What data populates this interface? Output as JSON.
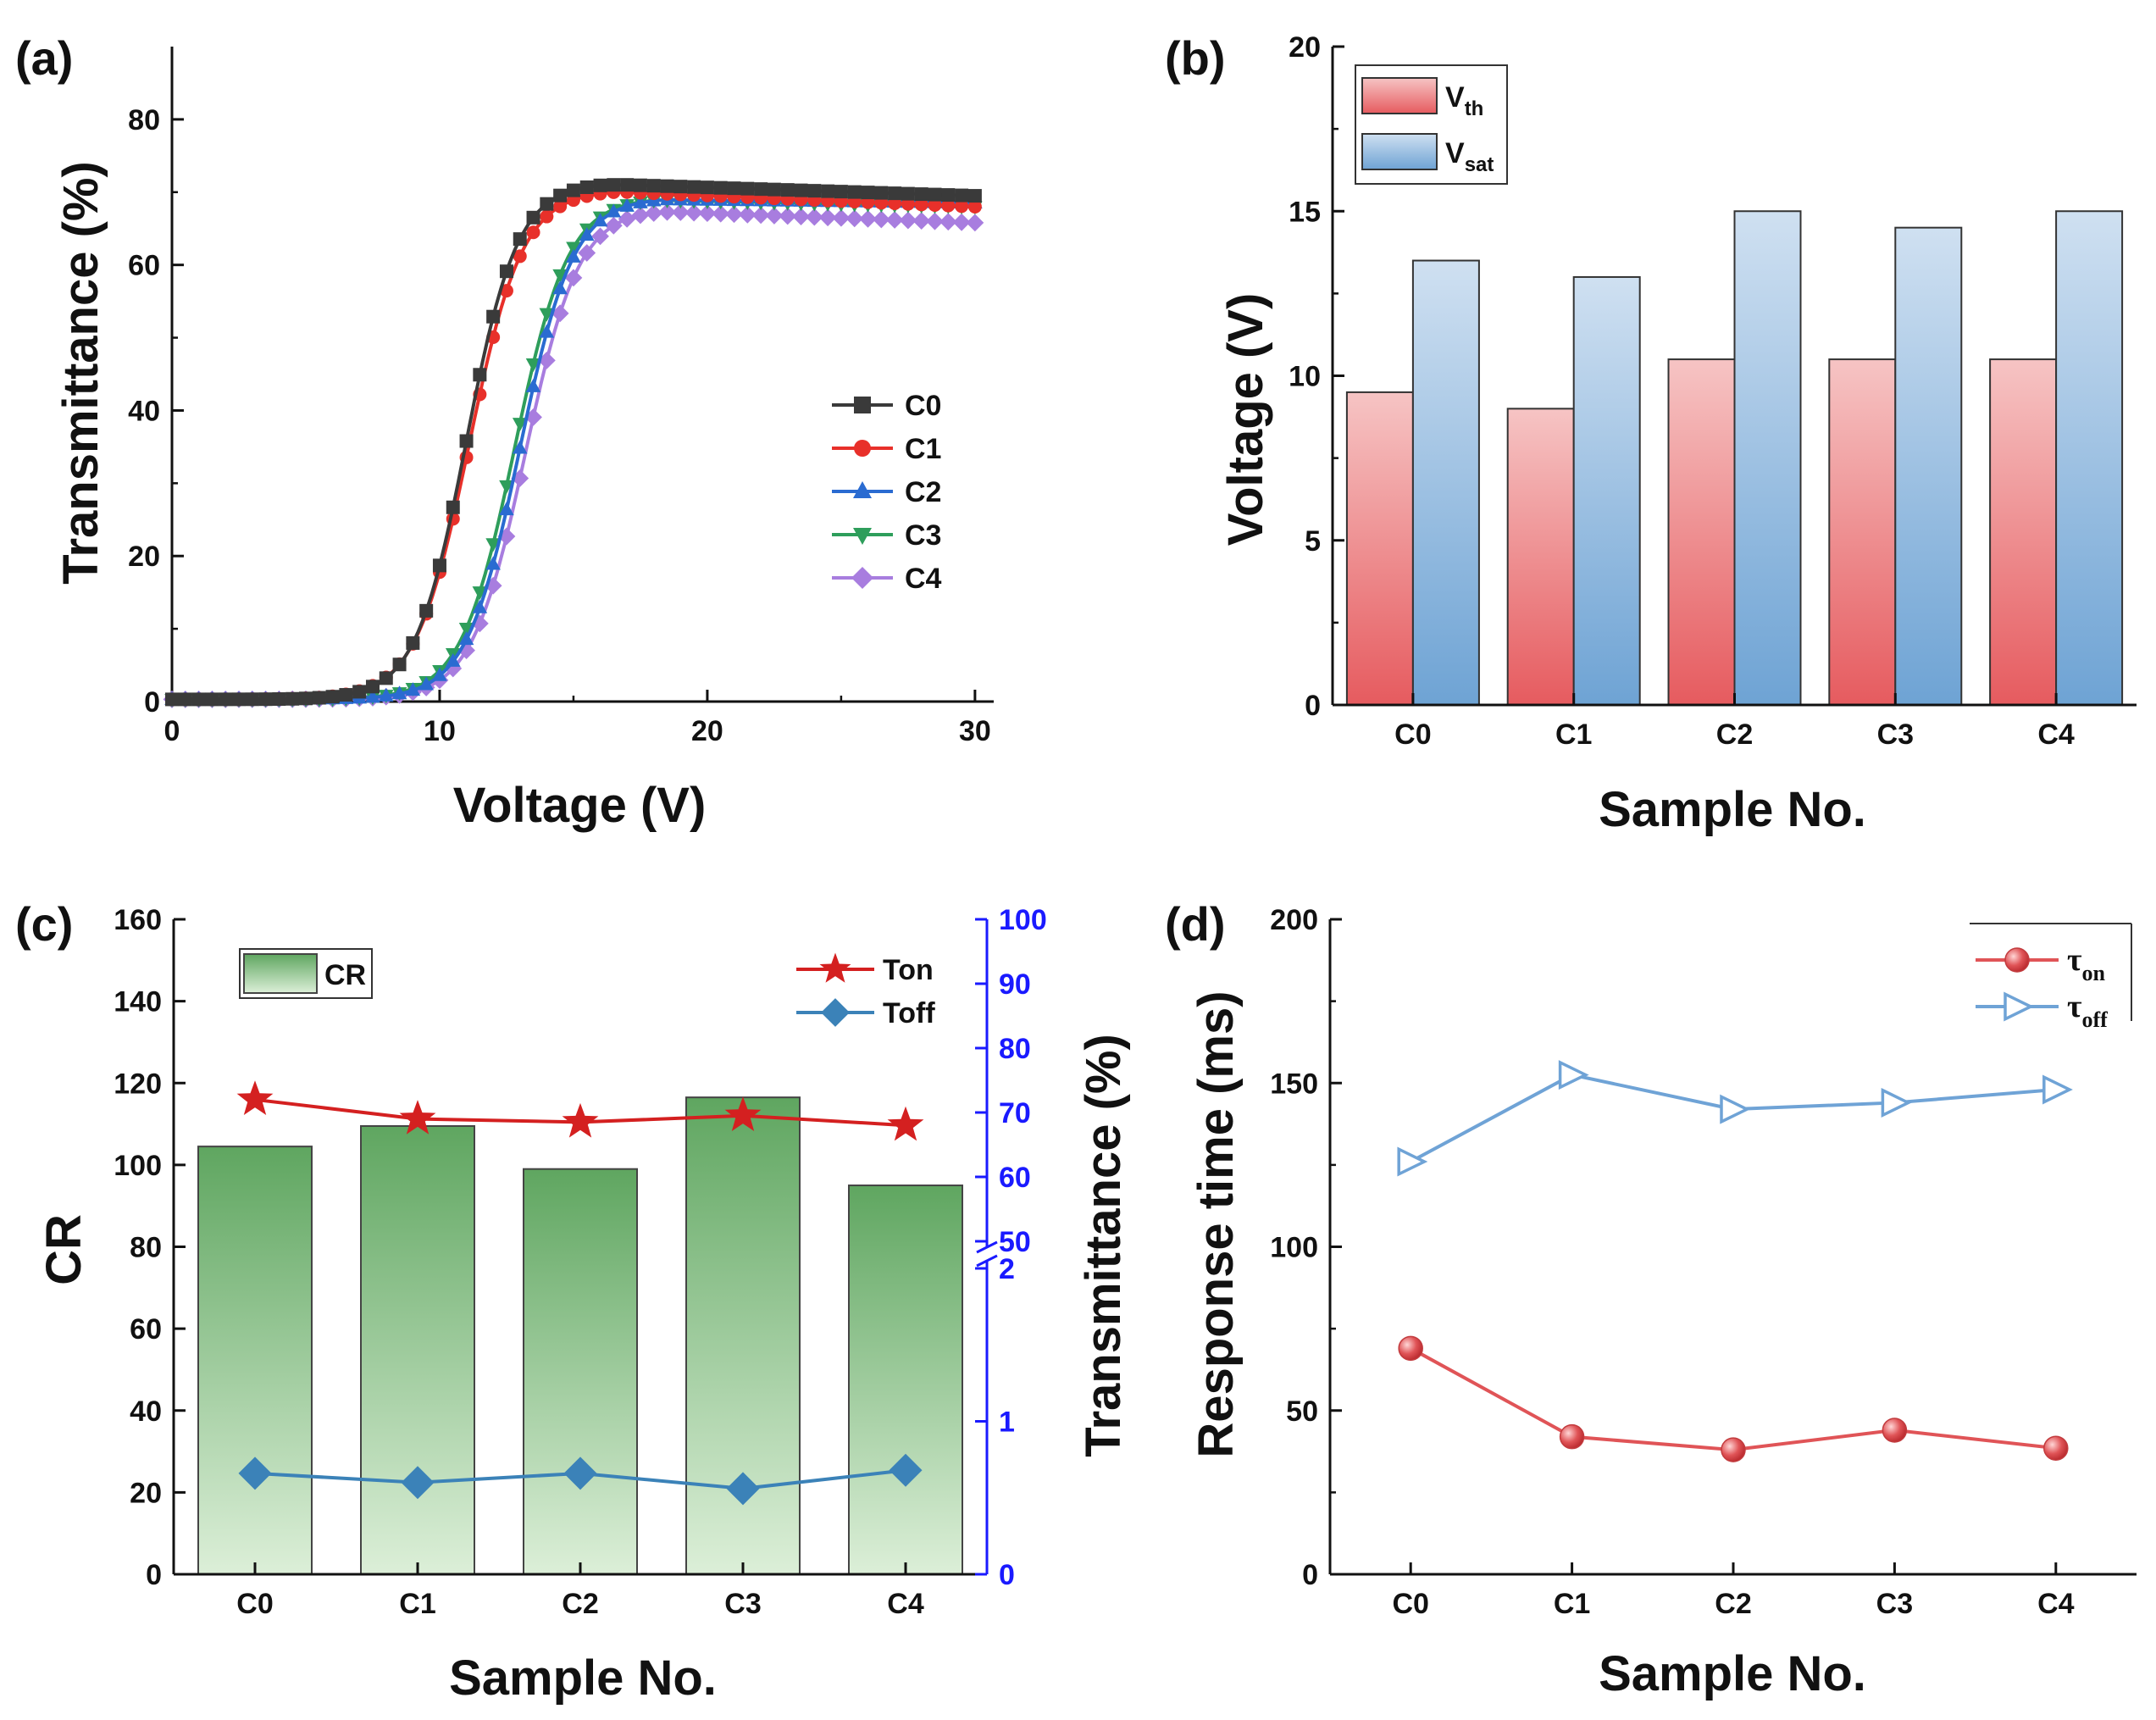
{
  "chart_data": [
    {
      "panel": "(a)",
      "type": "line",
      "xlabel": "Voltage (V)",
      "ylabel": "Transmittance (%)",
      "xlim": [
        0,
        30
      ],
      "ylim": [
        0,
        90
      ],
      "xticks": [
        "0",
        "10",
        "20",
        "30"
      ],
      "yticks": [
        "0",
        "20",
        "40",
        "60",
        "80"
      ],
      "legend_position": "right-middle",
      "series": [
        {
          "name": "C0",
          "color": "#3a3a3a",
          "marker": "square",
          "midpoint": 11.0,
          "steepness": 1.05,
          "plateau": 71.0,
          "end_value": 69.5,
          "points": [
            [
              0,
              0.3
            ],
            [
              5,
              0.6
            ],
            [
              8,
              2
            ],
            [
              9,
              7
            ],
            [
              10,
              18
            ],
            [
              11,
              35
            ],
            [
              12,
              55
            ],
            [
              13,
              66
            ],
            [
              14,
              70
            ],
            [
              16,
              71
            ],
            [
              20,
              71
            ],
            [
              25,
              70.3
            ],
            [
              30,
              69.5
            ]
          ]
        },
        {
          "name": "C1",
          "color": "#e8302a",
          "marker": "circle",
          "midpoint": 11.1,
          "steepness": 1.0,
          "plateau": 70.0,
          "end_value": 68.0,
          "points": [
            [
              0,
              0.3
            ],
            [
              5,
              0.6
            ],
            [
              8,
              2
            ],
            [
              9,
              6
            ],
            [
              10,
              15
            ],
            [
              11,
              33
            ],
            [
              12,
              52
            ],
            [
              13,
              63
            ],
            [
              14,
              67
            ],
            [
              16,
              69
            ],
            [
              20,
              69.5
            ],
            [
              25,
              68.7
            ],
            [
              30,
              68.0
            ]
          ]
        },
        {
          "name": "C2",
          "color": "#2a6bd1",
          "marker": "triangle-up",
          "midpoint": 13.0,
          "steepness": 1.0,
          "plateau": 69.0,
          "end_value": 68.5,
          "points": [
            [
              0,
              0.3
            ],
            [
              5,
              0.5
            ],
            [
              9,
              1
            ],
            [
              10,
              3
            ],
            [
              11,
              8
            ],
            [
              12,
              20
            ],
            [
              13,
              35
            ],
            [
              14,
              52
            ],
            [
              15,
              62
            ],
            [
              16,
              67
            ],
            [
              20,
              69
            ],
            [
              25,
              68.8
            ],
            [
              30,
              68.5
            ]
          ]
        },
        {
          "name": "C3",
          "color": "#2e9e5b",
          "marker": "triangle-down",
          "midpoint": 12.8,
          "steepness": 1.0,
          "plateau": 69.0,
          "end_value": 68.0,
          "points": [
            [
              0,
              0.3
            ],
            [
              5,
              0.5
            ],
            [
              9,
              1
            ],
            [
              10,
              4
            ],
            [
              11,
              9
            ],
            [
              12,
              22
            ],
            [
              13,
              38
            ],
            [
              14,
              55
            ],
            [
              15,
              63
            ],
            [
              16,
              67
            ],
            [
              20,
              68.7
            ],
            [
              25,
              68.4
            ],
            [
              30,
              68.0
            ]
          ]
        },
        {
          "name": "C4",
          "color": "#a87ddf",
          "marker": "diamond",
          "midpoint": 13.2,
          "steepness": 1.0,
          "plateau": 67.5,
          "end_value": 65.8,
          "points": [
            [
              0,
              0.3
            ],
            [
              5,
              0.5
            ],
            [
              9,
              1
            ],
            [
              10,
              3
            ],
            [
              11,
              7
            ],
            [
              12,
              18
            ],
            [
              13,
              33
            ],
            [
              14,
              50
            ],
            [
              15,
              60
            ],
            [
              16,
              65
            ],
            [
              20,
              67.5
            ],
            [
              25,
              66.8
            ],
            [
              30,
              65.8
            ]
          ]
        }
      ]
    },
    {
      "panel": "(b)",
      "type": "bar",
      "xlabel": "Sample No.",
      "ylabel": "Voltage (V)",
      "categories": [
        "C0",
        "C1",
        "C2",
        "C3",
        "C4"
      ],
      "ylim": [
        0,
        20
      ],
      "yticks": [
        "0",
        "5",
        "10",
        "15",
        "20"
      ],
      "legend_position": "top-left",
      "series": [
        {
          "name": "V",
          "sub": "th",
          "color_top": "#f6c4c4",
          "color_bottom": "#e65b5f",
          "values": [
            9.5,
            9.0,
            10.5,
            10.5,
            10.5
          ]
        },
        {
          "name": "V",
          "sub": "sat",
          "color_top": "#cfe0f1",
          "color_bottom": "#6ea3d4",
          "values": [
            13.5,
            13.0,
            15.0,
            14.5,
            15.0
          ]
        }
      ]
    },
    {
      "panel": "(c)",
      "type": "bar",
      "xlabel": "Sample No.",
      "ylabel": "CR",
      "y2label": "Transmittance (%)",
      "categories": [
        "C0",
        "C1",
        "C2",
        "C3",
        "C4"
      ],
      "ylim": [
        0,
        160
      ],
      "yticks": [
        "0",
        "20",
        "40",
        "60",
        "80",
        "100",
        "120",
        "140",
        "160"
      ],
      "y2_lower_ticks": [
        "0",
        "1",
        "2"
      ],
      "y2_upper_ticks": [
        "50",
        "60",
        "70",
        "80",
        "90",
        "100"
      ],
      "y2_break": "broken axis between 2 and 50",
      "bars": {
        "name": "CR",
        "color_top": "#64a865",
        "color_bottom": "#d9eed5",
        "values": [
          104.5,
          109.5,
          99.0,
          116.5,
          95.0
        ]
      },
      "series": [
        {
          "name": "Ton",
          "color": "#d42020",
          "marker": "star",
          "values": [
            72.0,
            69.0,
            68.5,
            69.5,
            68.0
          ]
        },
        {
          "name": "Toff",
          "color": "#3b82b8",
          "marker": "diamond",
          "values": [
            0.66,
            0.6,
            0.66,
            0.56,
            0.68
          ]
        }
      ]
    },
    {
      "panel": "(d)",
      "type": "line",
      "xlabel": "Sample No.",
      "ylabel": "Response time (ms)",
      "categories": [
        "C0",
        "C1",
        "C2",
        "C3",
        "C4"
      ],
      "ylim": [
        0,
        200
      ],
      "yticks": [
        "0",
        "50",
        "100",
        "150",
        "200"
      ],
      "legend_position": "top-right",
      "series": [
        {
          "name": "τ",
          "sub": "on",
          "color": "#e05457",
          "marker": "sphere",
          "values": [
            69.0,
            42.0,
            38.0,
            44.0,
            38.5
          ]
        },
        {
          "name": "τ",
          "sub": "off",
          "color": "#6fa3d6",
          "marker": "triangle-right-open",
          "values": [
            126.0,
            152.5,
            142.0,
            144.0,
            148.0
          ]
        }
      ]
    }
  ]
}
